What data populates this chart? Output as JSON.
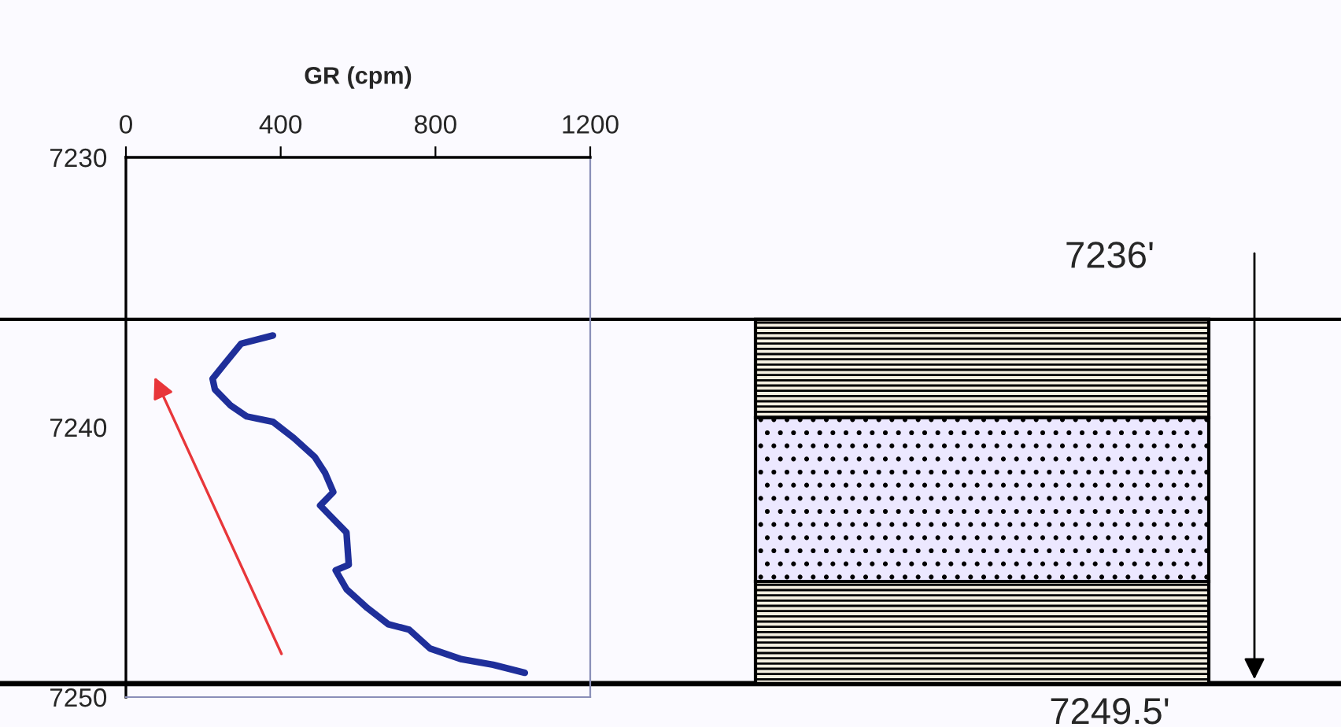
{
  "chart_data": {
    "type": "line",
    "xlabel": "GR (cpm)",
    "xlim": [
      0,
      1200
    ],
    "xticks": [
      0,
      400,
      800,
      1200
    ],
    "ylim": [
      7250,
      7230
    ],
    "yticks": [
      7230,
      7240,
      7250
    ],
    "series": [
      {
        "color": "#1f2f9a",
        "x": [
          380,
          298,
          258,
          224,
          230,
          271,
          312,
          380,
          434,
          488,
          515,
          536,
          502,
          529,
          570,
          576,
          542,
          570,
          624,
          678,
          732,
          786,
          868,
          949,
          1031
        ],
        "values": [
          7236.6,
          7236.9,
          7237.6,
          7238.2,
          7238.6,
          7239.2,
          7239.6,
          7239.8,
          7240.4,
          7241.1,
          7241.7,
          7242.4,
          7242.9,
          7243.3,
          7243.9,
          7245.1,
          7245.3,
          7246.0,
          7246.7,
          7247.3,
          7247.5,
          7248.2,
          7248.6,
          7248.8,
          7249.1
        ]
      }
    ],
    "ref_lines": [
      {
        "axis": "y",
        "value": 7236,
        "label": "7236'",
        "color": "#000000"
      },
      {
        "axis": "y",
        "value": 7249.5,
        "label": "7249.5'",
        "color": "#000000"
      }
    ],
    "grid": false,
    "legend": false,
    "marker": "none",
    "line_style": "solid"
  }
}
